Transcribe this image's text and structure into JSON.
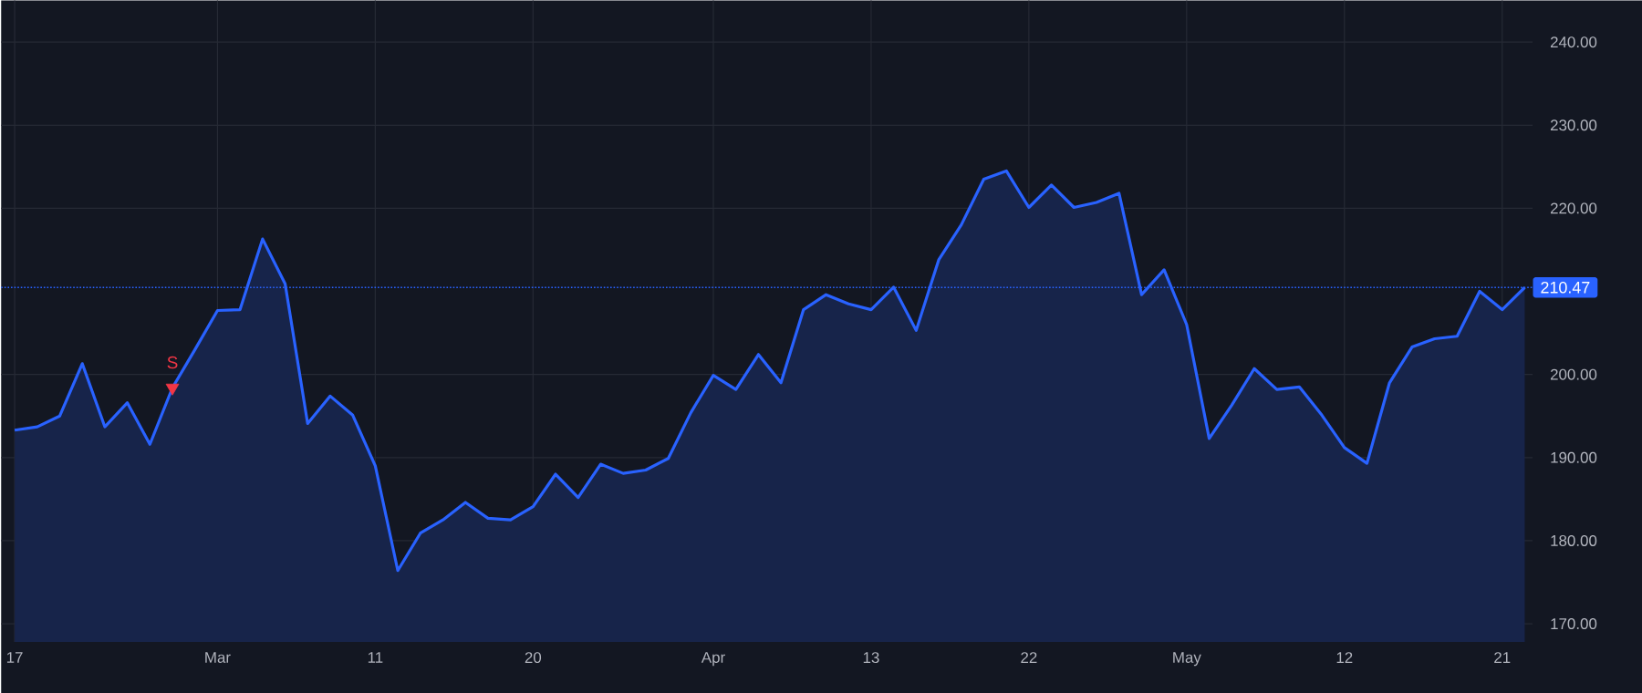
{
  "chart_data": {
    "type": "area",
    "categories": [
      "17",
      null,
      null,
      null,
      null,
      null,
      null,
      null,
      null,
      "Mar",
      null,
      null,
      null,
      null,
      null,
      null,
      "11",
      null,
      null,
      null,
      null,
      null,
      null,
      "20",
      null,
      null,
      null,
      null,
      null,
      null,
      null,
      "Apr",
      null,
      null,
      null,
      null,
      null,
      null,
      "13",
      null,
      null,
      null,
      null,
      null,
      null,
      "22",
      null,
      null,
      null,
      null,
      null,
      null,
      "May",
      null,
      null,
      null,
      null,
      null,
      null,
      "12",
      null,
      null,
      null,
      null,
      null,
      null,
      "21",
      null
    ],
    "series": [
      {
        "color": "#2962ff",
        "values": [
          193.3,
          193.7,
          195.0,
          201.3,
          193.7,
          196.6,
          191.6,
          198.4,
          203.0,
          207.7,
          207.8,
          216.3,
          210.9,
          194.1,
          197.4,
          195.1,
          189.0,
          176.4,
          180.9,
          182.5,
          184.6,
          182.7,
          182.5,
          184.1,
          188.0,
          185.2,
          189.2,
          188.1,
          188.5,
          189.9,
          195.4,
          199.9,
          198.2,
          202.4,
          199.0,
          207.8,
          209.6,
          208.5,
          207.8,
          210.5,
          205.3,
          213.8,
          218.0,
          223.5,
          224.5,
          220.1,
          222.8,
          220.1,
          220.7,
          221.8,
          209.6,
          212.6,
          206.0,
          192.3,
          196.3,
          200.7,
          198.2,
          198.5,
          195.1,
          191.2,
          189.3,
          199.0,
          203.3,
          204.3,
          204.6,
          210.0,
          207.8,
          210.47
        ]
      },
      {
        "type": "scatter",
        "color": "#f23645",
        "marker": "triangle",
        "values": [
          null,
          null,
          null,
          null,
          null,
          null,
          null,
          198.4,
          null,
          null,
          null,
          null,
          null,
          null,
          null,
          null,
          null,
          null,
          null,
          null,
          null,
          null,
          null,
          null,
          null,
          null,
          null,
          null,
          null,
          null,
          null,
          null,
          null,
          null,
          null,
          null,
          null,
          null,
          null,
          null,
          null,
          null,
          null,
          null,
          null,
          null,
          null,
          null,
          null,
          null,
          null,
          null,
          null,
          null,
          null,
          null,
          null,
          null,
          null,
          null,
          null,
          null,
          null,
          null,
          null,
          null,
          null,
          null
        ]
      }
    ],
    "ylim": [
      167.8,
      245
    ],
    "yticks": [
      {
        "value": 170,
        "label": "170.00"
      },
      {
        "value": 180,
        "label": "180.00"
      },
      {
        "value": 190,
        "label": "190.00"
      },
      {
        "value": 200,
        "label": "200.00"
      },
      {
        "value": 220,
        "label": "220.00"
      },
      {
        "value": 230,
        "label": "230.00"
      },
      {
        "value": 240,
        "label": "240.00"
      }
    ],
    "grid": true,
    "ref_lines": [
      {
        "axis": "y",
        "value": 210.47,
        "label": "210.47",
        "color": "#2962ff",
        "line_style": "dotted"
      }
    ],
    "annotations": [
      {
        "text": "S",
        "y": 198.4
      }
    ]
  }
}
